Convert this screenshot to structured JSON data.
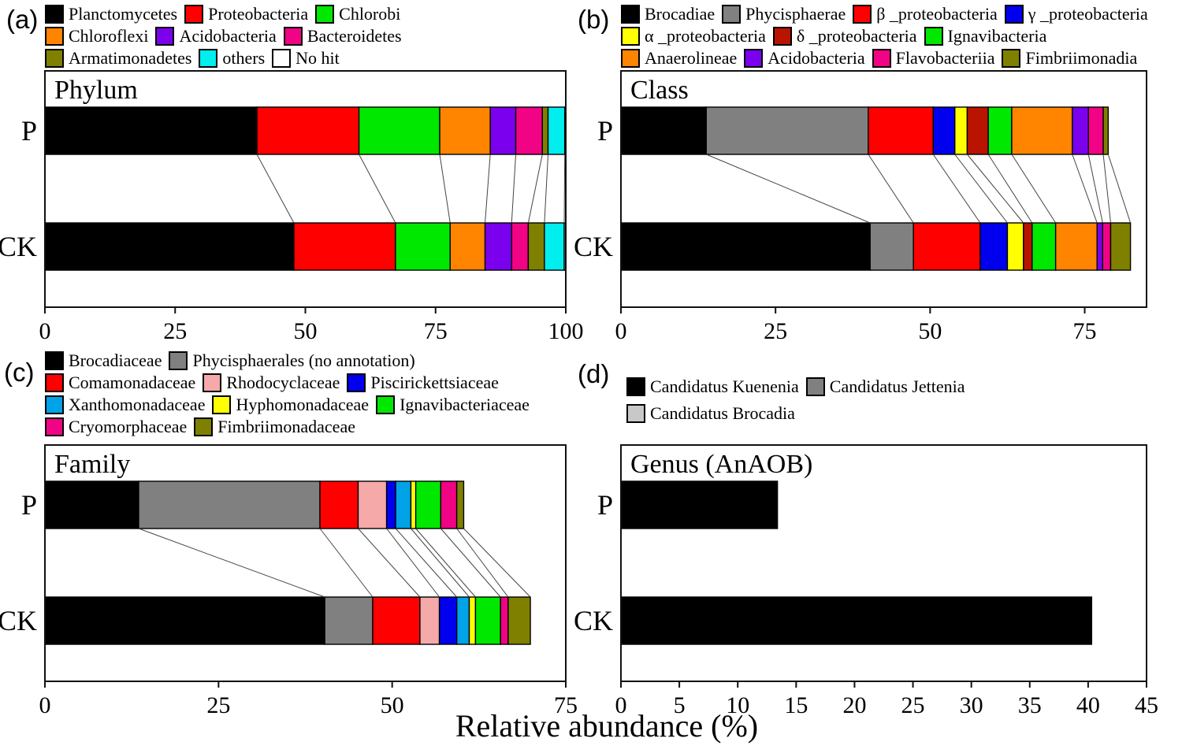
{
  "figure": {
    "xlabel": "Relative abundance (%)",
    "background": "#FFFFFF",
    "frame_color": "#111111",
    "connector_color": "#444444"
  },
  "chart_data": [
    {
      "id": "a",
      "tag": "(a)",
      "title": "Phylum",
      "type": "bar",
      "orientation": "horizontal",
      "stacked": true,
      "categories": [
        "P",
        "CK"
      ],
      "xlim": [
        0,
        100
      ],
      "xticks": [
        0,
        25,
        50,
        75,
        100
      ],
      "grid": false,
      "legend_position": "top",
      "legend_rows": [
        3,
        3,
        3
      ],
      "show_connectors": true,
      "series": [
        {
          "name": "Planctomycetes",
          "color": "#000000",
          "values": [
            40.7,
            47.8
          ]
        },
        {
          "name": "Proteobacteria",
          "color": "#FF0000",
          "values": [
            19.6,
            19.5
          ]
        },
        {
          "name": "Chlorobi",
          "color": "#00E800",
          "values": [
            15.5,
            10.5
          ]
        },
        {
          "name": "Chloroflexi",
          "color": "#FF8400",
          "values": [
            9.7,
            6.7
          ]
        },
        {
          "name": "Acidobacteria",
          "color": "#7B00EE",
          "values": [
            4.9,
            5.1
          ]
        },
        {
          "name": "Bacteroidetes",
          "color": "#F00384",
          "values": [
            5.1,
            3.2
          ]
        },
        {
          "name": "Armatimonadetes",
          "color": "#808000",
          "values": [
            1.1,
            3.1
          ]
        },
        {
          "name": "others",
          "color": "#00EEEE",
          "values": [
            3.2,
            3.8
          ]
        },
        {
          "name": "No hit",
          "color": "#FFFFFF",
          "values": [
            0.2,
            0.3
          ]
        }
      ]
    },
    {
      "id": "b",
      "tag": "(b)",
      "title": "Class",
      "type": "bar",
      "orientation": "horizontal",
      "stacked": true,
      "categories": [
        "P",
        "CK"
      ],
      "xlim": [
        0,
        85
      ],
      "xticks": [
        0,
        25,
        50,
        75
      ],
      "grid": false,
      "legend_position": "top",
      "legend_rows": [
        4,
        3,
        4
      ],
      "show_connectors": true,
      "series": [
        {
          "name": "Brocadiae",
          "color": "#000000",
          "values": [
            13.8,
            40.3
          ]
        },
        {
          "name": "Phycisphaerae",
          "color": "#808080",
          "values": [
            26.2,
            7.0
          ]
        },
        {
          "name": "β _proteobacteria",
          "color": "#FF0000",
          "values": [
            10.5,
            10.8
          ]
        },
        {
          "name": "γ _proteobacteria",
          "color": "#0000EE",
          "values": [
            3.5,
            4.4
          ]
        },
        {
          "name": "α _proteobacteria",
          "color": "#FFFF00",
          "values": [
            2.0,
            2.6
          ]
        },
        {
          "name": "δ _proteobacteria",
          "color": "#B81400",
          "values": [
            3.4,
            1.4
          ]
        },
        {
          "name": "Ignavibacteria",
          "color": "#00E800",
          "values": [
            3.8,
            3.8
          ]
        },
        {
          "name": "Anaerolineae",
          "color": "#FF8400",
          "values": [
            9.8,
            6.7
          ]
        },
        {
          "name": "Acidobacteria",
          "color": "#7B00EE",
          "values": [
            2.6,
            0.9
          ]
        },
        {
          "name": "Flavobacteriia",
          "color": "#F00384",
          "values": [
            2.4,
            1.3
          ]
        },
        {
          "name": "Fimbriimonadia",
          "color": "#808000",
          "values": [
            0.8,
            3.2
          ]
        }
      ]
    },
    {
      "id": "c",
      "tag": "(c)",
      "title": "Family",
      "type": "bar",
      "orientation": "horizontal",
      "stacked": true,
      "categories": [
        "P",
        "CK"
      ],
      "xlim": [
        0,
        75
      ],
      "xticks": [
        0,
        25,
        50,
        75
      ],
      "grid": false,
      "legend_position": "top",
      "legend_rows": [
        2,
        3,
        3,
        2
      ],
      "show_connectors": true,
      "series": [
        {
          "name": "Brocadiaceae",
          "color": "#000000",
          "values": [
            13.5,
            40.3
          ]
        },
        {
          "name": "Phycisphaerales (no annotation)",
          "color": "#808080",
          "values": [
            26.1,
            6.9
          ]
        },
        {
          "name": "Comamonadaceae",
          "color": "#FF0000",
          "values": [
            5.5,
            6.8
          ]
        },
        {
          "name": "Rhodocyclaceae",
          "color": "#F5A9A9",
          "values": [
            4.1,
            2.8
          ]
        },
        {
          "name": "Piscirickettsiaceae",
          "color": "#0000EE",
          "values": [
            1.3,
            2.5
          ]
        },
        {
          "name": "Xanthomonadaceae",
          "color": "#00A2E8",
          "values": [
            2.2,
            1.8
          ]
        },
        {
          "name": "Hyphomonadaceae",
          "color": "#FFFF00",
          "values": [
            0.7,
            0.9
          ]
        },
        {
          "name": "Ignavibacteriaceae",
          "color": "#00E800",
          "values": [
            3.6,
            3.6
          ]
        },
        {
          "name": "Cryomorphaceae",
          "color": "#F00384",
          "values": [
            2.3,
            1.1
          ]
        },
        {
          "name": "Fimbriimonadaceae",
          "color": "#808000",
          "values": [
            1.0,
            3.2
          ]
        }
      ]
    },
    {
      "id": "d",
      "tag": "(d)",
      "title": "Genus (AnAOB)",
      "type": "bar",
      "orientation": "horizontal",
      "stacked": true,
      "categories": [
        "P",
        "CK"
      ],
      "xlim": [
        0,
        45
      ],
      "xticks": [
        0,
        5,
        10,
        15,
        20,
        25,
        30,
        35,
        40,
        45
      ],
      "grid": false,
      "legend_position": "top",
      "legend_rows": [
        2,
        1
      ],
      "show_connectors": false,
      "series": [
        {
          "name": "Candidatus Kuenenia",
          "color": "#000000",
          "values": [
            13.4,
            40.3
          ]
        },
        {
          "name": "Candidatus Jettenia",
          "color": "#808080",
          "values": [
            0,
            0
          ]
        },
        {
          "name": "Candidatus Brocadia",
          "color": "#C8C8C8",
          "values": [
            0,
            0
          ]
        }
      ]
    }
  ]
}
